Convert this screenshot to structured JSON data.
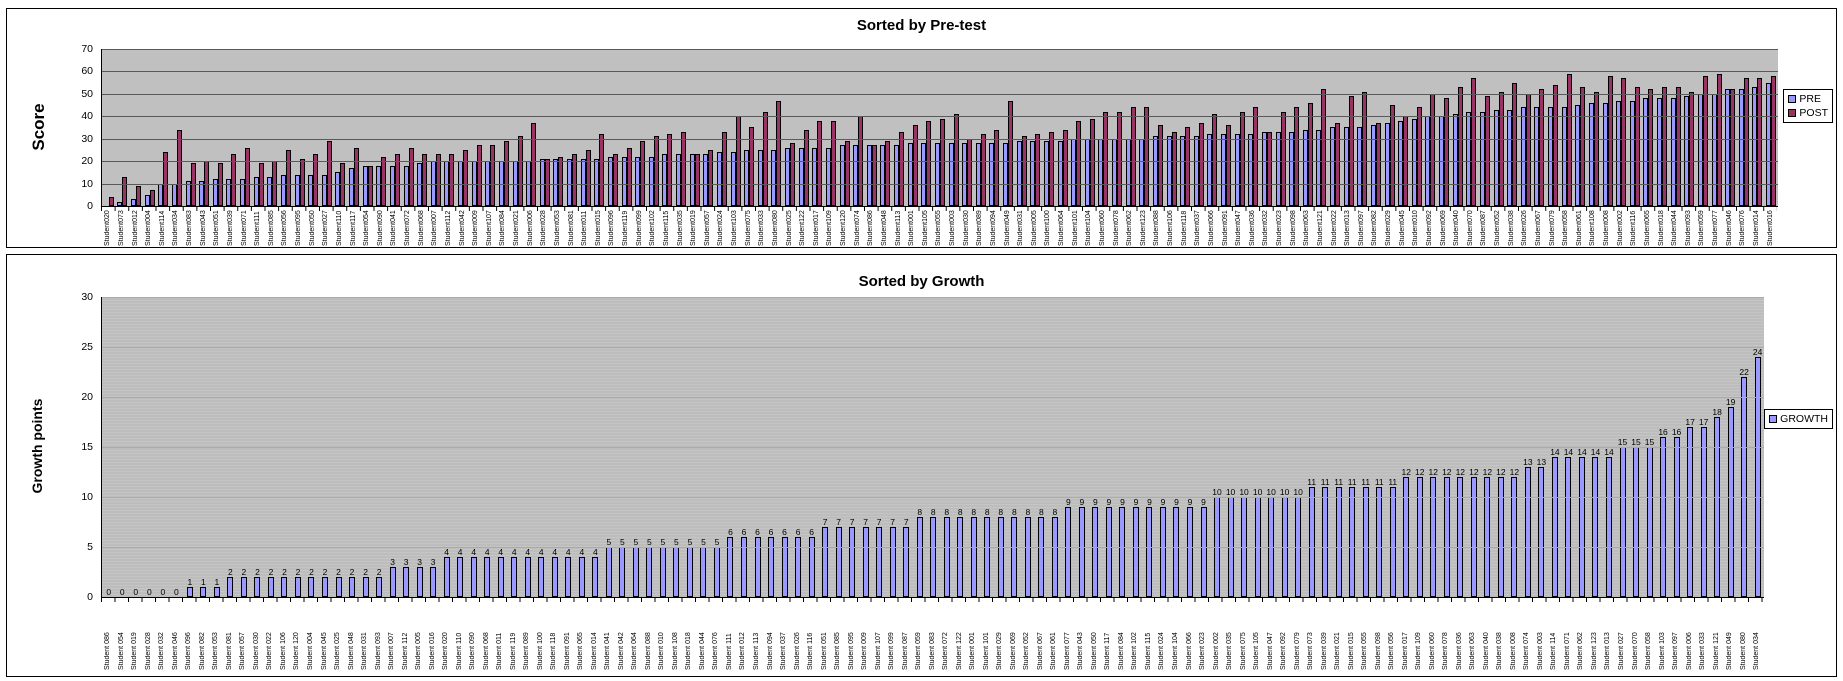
{
  "chart_data": [
    {
      "type": "bar",
      "title": "Sorted by Pre-test",
      "ylabel": "Score",
      "ylim": [
        0,
        70
      ],
      "yticks": [
        0,
        10,
        20,
        30,
        40,
        50,
        60,
        70
      ],
      "plot_bg": "#c0c0c0",
      "gridline_color": "#5a5a5a",
      "stripes": false,
      "data_labels": false,
      "legend_position": "right",
      "categories": [
        "Student020",
        "Student073",
        "Student012",
        "Student004",
        "Student114",
        "Student034",
        "Student083",
        "Student043",
        "Student051",
        "Student039",
        "Student071",
        "Student111",
        "Student085",
        "Student056",
        "Student095",
        "Student050",
        "Student027",
        "Student110",
        "Student117",
        "Student054",
        "Student090",
        "Student041",
        "Student072",
        "Student068",
        "Student007",
        "Student112",
        "Student042",
        "Student009",
        "Student107",
        "Student084",
        "Student021",
        "Student006",
        "Student028",
        "Student053",
        "Student081",
        "Student011",
        "Student015",
        "Student096",
        "Student119",
        "Student099",
        "Student102",
        "Student115",
        "Student035",
        "Student019",
        "Student057",
        "Student024",
        "Student103",
        "Student075",
        "Student033",
        "Student080",
        "Student025",
        "Student122",
        "Student017",
        "Student109",
        "Student120",
        "Student074",
        "Student086",
        "Student048",
        "Student113",
        "Student001",
        "Student105",
        "Student055",
        "Student003",
        "Student030",
        "Student089",
        "Student094",
        "Student049",
        "Student031",
        "Student005",
        "Student100",
        "Student064",
        "Student101",
        "Student104",
        "Student060",
        "Student078",
        "Student062",
        "Student123",
        "Student088",
        "Student106",
        "Student118",
        "Student037",
        "Student066",
        "Student091",
        "Student047",
        "Student036",
        "Student032",
        "Student023",
        "Student098",
        "Student063",
        "Student121",
        "Student022",
        "Student013",
        "Student097",
        "Student082",
        "Student029",
        "Student045",
        "Student010",
        "Student092",
        "Student069",
        "Student040",
        "Student070",
        "Student087",
        "Student052",
        "Student038",
        "Student026",
        "Student067",
        "Student079",
        "Student058",
        "Student061",
        "Student108",
        "Student008",
        "Student002",
        "Student116",
        "Student065",
        "Student018",
        "Student044",
        "Student093",
        "Student059",
        "Student077",
        "Student046",
        "Student076",
        "Student014",
        "Student016"
      ],
      "series": [
        {
          "name": "PRE",
          "color": "#9999ff",
          "values": [
            0,
            2,
            3,
            5,
            10,
            10,
            11,
            11,
            12,
            12,
            12,
            13,
            13,
            14,
            14,
            14,
            14,
            15,
            17,
            18,
            18,
            18,
            18,
            19,
            20,
            20,
            20,
            20,
            20,
            20,
            20,
            20,
            21,
            21,
            21,
            21,
            21,
            22,
            22,
            22,
            22,
            23,
            23,
            23,
            23,
            24,
            24,
            25,
            25,
            25,
            26,
            26,
            26,
            26,
            27,
            27,
            27,
            27,
            27,
            28,
            28,
            28,
            28,
            28,
            28,
            28,
            28,
            29,
            29,
            29,
            29,
            30,
            30,
            30,
            30,
            30,
            30,
            31,
            31,
            31,
            31,
            32,
            32,
            32,
            32,
            33,
            33,
            33,
            34,
            34,
            35,
            35,
            35,
            36,
            37,
            38,
            39,
            40,
            40,
            41,
            42,
            42,
            43,
            43,
            44,
            44,
            44,
            44,
            45,
            46,
            46,
            47,
            47,
            48,
            48,
            48,
            49,
            50,
            50,
            52,
            52,
            53,
            55
          ]
        },
        {
          "name": "POST",
          "color": "#993366",
          "values": [
            4,
            13,
            9,
            7,
            24,
            34,
            19,
            20,
            19,
            23,
            26,
            19,
            20,
            25,
            21,
            23,
            29,
            19,
            26,
            18,
            22,
            23,
            26,
            23,
            23,
            23,
            25,
            27,
            27,
            29,
            31,
            37,
            21,
            22,
            23,
            25,
            32,
            23,
            26,
            29,
            31,
            32,
            33,
            23,
            25,
            33,
            40,
            35,
            42,
            47,
            28,
            34,
            38,
            38,
            29,
            40,
            27,
            29,
            33,
            36,
            38,
            39,
            41,
            30,
            32,
            34,
            47,
            31,
            32,
            33,
            34,
            38,
            39,
            42,
            42,
            44,
            44,
            36,
            33,
            35,
            37,
            41,
            36,
            42,
            44,
            33,
            42,
            44,
            46,
            52,
            37,
            49,
            51,
            37,
            45,
            40,
            44,
            50,
            48,
            53,
            57,
            49,
            51,
            55,
            50,
            52,
            54,
            59,
            53,
            51,
            58,
            57,
            53,
            52,
            53,
            53,
            51,
            58,
            59,
            52,
            57,
            57,
            58
          ]
        }
      ]
    },
    {
      "type": "bar",
      "title": "Sorted by Growth",
      "ylabel": "Growth points",
      "ylim": [
        0,
        30
      ],
      "yticks": [
        0,
        5,
        10,
        15,
        20,
        25,
        30
      ],
      "plot_bg": "#c0c0c0",
      "gridline_color": "#aaaaaa",
      "stripes": true,
      "data_labels": true,
      "legend_position": "right",
      "categories": [
        "Student 086",
        "Student 054",
        "Student 019",
        "Student 028",
        "Student 032",
        "Student 046",
        "Student 096",
        "Student 082",
        "Student 053",
        "Student 081",
        "Student 057",
        "Student 030",
        "Student 022",
        "Student 106",
        "Student 120",
        "Student 004",
        "Student 045",
        "Student 025",
        "Student 048",
        "Student 031",
        "Student 093",
        "Student 007",
        "Student 112",
        "Student 005",
        "Student 016",
        "Student 020",
        "Student 110",
        "Student 090",
        "Student 068",
        "Student 011",
        "Student 119",
        "Student 089",
        "Student 100",
        "Student 118",
        "Student 091",
        "Student 065",
        "Student 014",
        "Student 041",
        "Student 042",
        "Student 064",
        "Student 088",
        "Student 010",
        "Student 108",
        "Student 018",
        "Student 044",
        "Student 076",
        "Student 111",
        "Student 012",
        "Student 113",
        "Student 094",
        "Student 037",
        "Student 026",
        "Student 116",
        "Student 051",
        "Student 085",
        "Student 095",
        "Student 009",
        "Student 107",
        "Student 099",
        "Student 087",
        "Student 059",
        "Student 083",
        "Student 072",
        "Student 122",
        "Student 001",
        "Student 101",
        "Student 029",
        "Student 069",
        "Student 052",
        "Student 067",
        "Student 061",
        "Student 077",
        "Student 043",
        "Student 050",
        "Student 117",
        "Student 084",
        "Student 102",
        "Student 115",
        "Student 024",
        "Student 104",
        "Student 066",
        "Student 023",
        "Student 002",
        "Student 035",
        "Student 075",
        "Student 105",
        "Student 047",
        "Student 092",
        "Student 079",
        "Student 073",
        "Student 039",
        "Student 021",
        "Student 015",
        "Student 055",
        "Student 098",
        "Student 056",
        "Student 017",
        "Student 109",
        "Student 060",
        "Student 078",
        "Student 036",
        "Student 063",
        "Student 040",
        "Student 038",
        "Student 008",
        "Student 074",
        "Student 003",
        "Student 114",
        "Student 071",
        "Student 062",
        "Student 123",
        "Student 013",
        "Student 027",
        "Student 070",
        "Student 058",
        "Student 103",
        "Student 097",
        "Student 006",
        "Student 033",
        "Student 121",
        "Student 049",
        "Student 080",
        "Student 034"
      ],
      "series": [
        {
          "name": "GROWTH",
          "color": "#9999ff",
          "values": [
            0,
            0,
            0,
            0,
            0,
            0,
            1,
            1,
            1,
            2,
            2,
            2,
            2,
            2,
            2,
            2,
            2,
            2,
            2,
            2,
            2,
            3,
            3,
            3,
            3,
            4,
            4,
            4,
            4,
            4,
            4,
            4,
            4,
            4,
            4,
            4,
            4,
            5,
            5,
            5,
            5,
            5,
            5,
            5,
            5,
            5,
            6,
            6,
            6,
            6,
            6,
            6,
            6,
            7,
            7,
            7,
            7,
            7,
            7,
            7,
            8,
            8,
            8,
            8,
            8,
            8,
            8,
            8,
            8,
            8,
            8,
            9,
            9,
            9,
            9,
            9,
            9,
            9,
            9,
            9,
            9,
            9,
            10,
            10,
            10,
            10,
            10,
            10,
            10,
            11,
            11,
            11,
            11,
            11,
            11,
            11,
            12,
            12,
            12,
            12,
            12,
            12,
            12,
            12,
            12,
            13,
            13,
            14,
            14,
            14,
            14,
            14,
            15,
            15,
            15,
            16,
            16,
            17,
            17,
            18,
            19,
            22,
            24
          ]
        }
      ]
    }
  ]
}
